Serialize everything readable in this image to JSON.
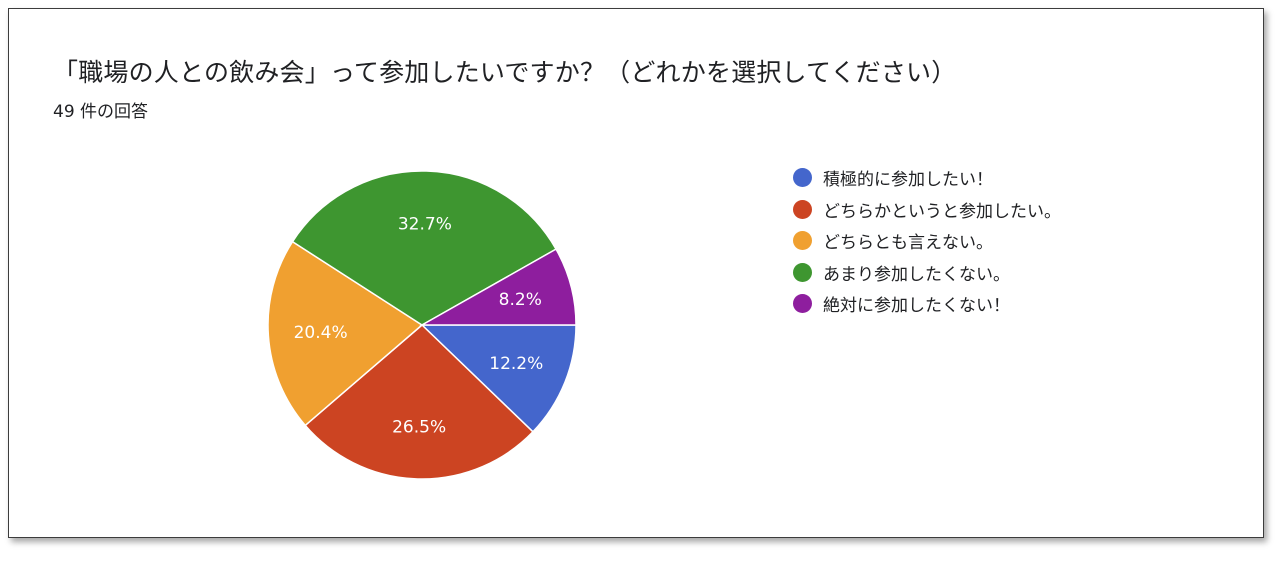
{
  "header": {
    "title": "「職場の人との飲み会」って参加したいですか？（どれかを選択してください）",
    "response_count": "49 件の回答"
  },
  "chart_data": {
    "type": "pie",
    "categories": [
      "積極的に参加したい！",
      "どちらかというと参加したい。",
      "どちらとも言えない。",
      "あまり参加したくない。",
      "絶対に参加したくない！"
    ],
    "values": [
      12.2,
      26.5,
      20.4,
      32.7,
      8.2
    ],
    "labels": [
      "12.2%",
      "26.5%",
      "20.4%",
      "32.7%",
      "8.2%"
    ],
    "colors": [
      "#4466cc",
      "#cc4422",
      "#f0a030",
      "#3e9630",
      "#8e1e9e"
    ],
    "start_angle_deg": 0,
    "direction": "clockwise",
    "legend_position": "right"
  }
}
